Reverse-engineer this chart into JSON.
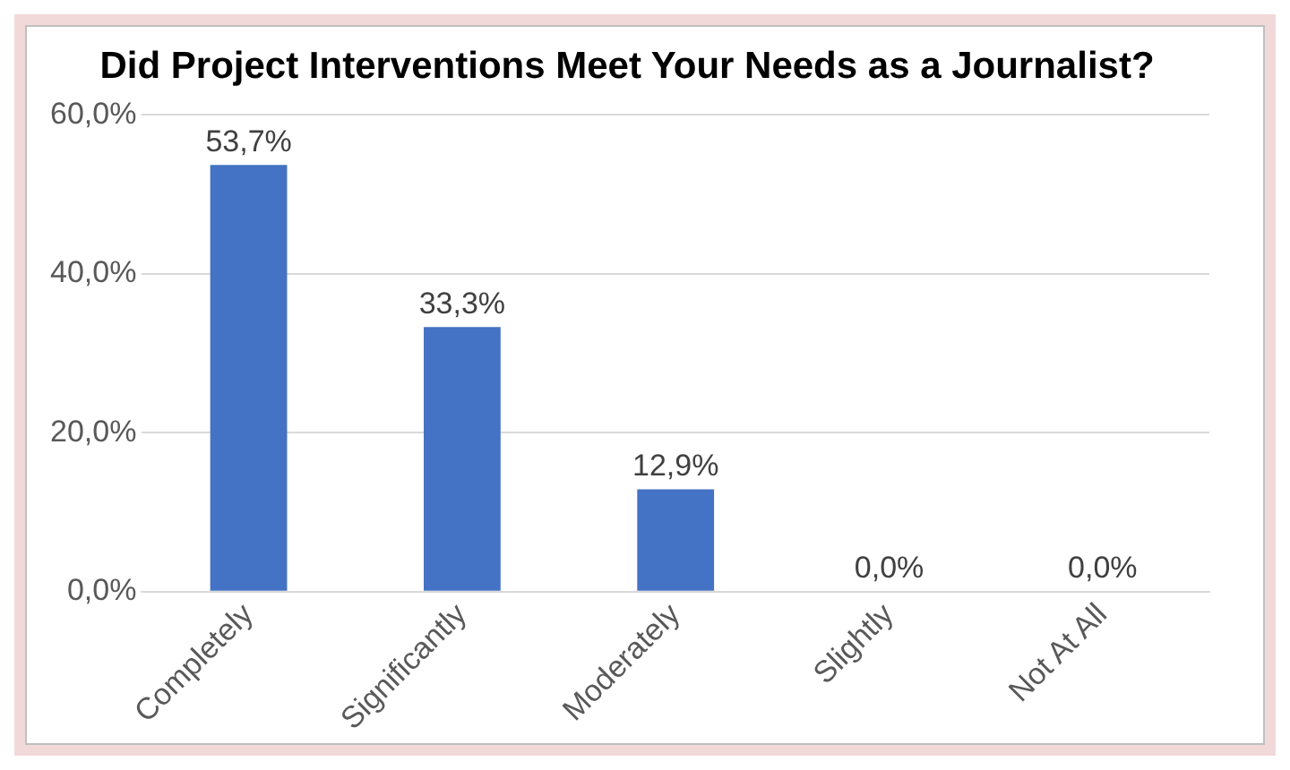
{
  "chart_data": {
    "type": "bar",
    "title": "Did Project Interventions Meet Your Needs as a Journalist?",
    "categories": [
      "Completely",
      "Significantly",
      "Moderately",
      "Slightly",
      "Not At All"
    ],
    "values": [
      53.7,
      33.3,
      12.9,
      0,
      0
    ],
    "value_labels": [
      "53,7%",
      "33,3%",
      "12,9%",
      "0,0%",
      "0,0%"
    ],
    "color": "#4472c4",
    "ylim": [
      0,
      60
    ],
    "yticks": [
      {
        "value": 0,
        "label": "0,0%"
      },
      {
        "value": 20,
        "label": "20,0%"
      },
      {
        "value": 40,
        "label": "40,0%"
      },
      {
        "value": 60,
        "label": "60,0%"
      }
    ],
    "grid": "y"
  }
}
